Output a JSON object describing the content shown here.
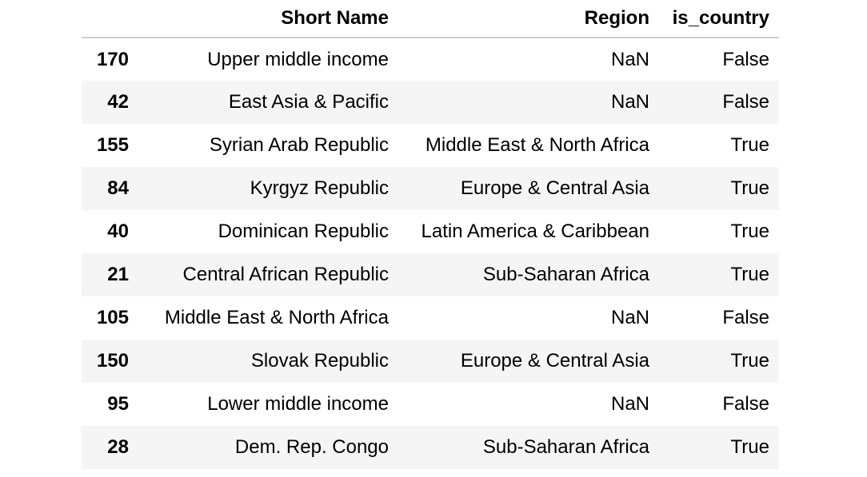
{
  "table": {
    "columns": [
      "",
      "Short Name",
      "Region",
      "is_country"
    ],
    "rows": [
      {
        "index": "170",
        "short_name": "Upper middle income",
        "region": "NaN",
        "is_country": "False"
      },
      {
        "index": "42",
        "short_name": "East Asia & Pacific",
        "region": "NaN",
        "is_country": "False"
      },
      {
        "index": "155",
        "short_name": "Syrian Arab Republic",
        "region": "Middle East & North Africa",
        "is_country": "True"
      },
      {
        "index": "84",
        "short_name": "Kyrgyz Republic",
        "region": "Europe & Central Asia",
        "is_country": "True"
      },
      {
        "index": "40",
        "short_name": "Dominican Republic",
        "region": "Latin America & Caribbean",
        "is_country": "True"
      },
      {
        "index": "21",
        "short_name": "Central African Republic",
        "region": "Sub-Saharan Africa",
        "is_country": "True"
      },
      {
        "index": "105",
        "short_name": "Middle East & North Africa",
        "region": "NaN",
        "is_country": "False"
      },
      {
        "index": "150",
        "short_name": "Slovak Republic",
        "region": "Europe & Central Asia",
        "is_country": "True"
      },
      {
        "index": "95",
        "short_name": "Lower middle income",
        "region": "NaN",
        "is_country": "False"
      },
      {
        "index": "28",
        "short_name": "Dem. Rep. Congo",
        "region": "Sub-Saharan Africa",
        "is_country": "True"
      }
    ]
  }
}
